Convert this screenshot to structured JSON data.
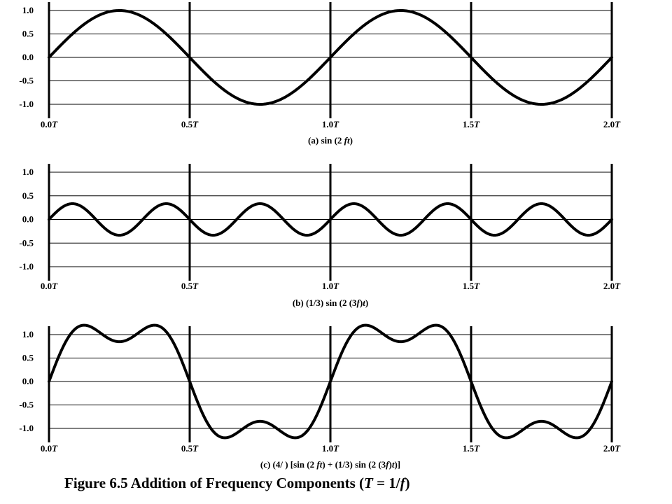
{
  "figure": {
    "title": "Figure 6.5  Addition of Frequency Components (T = 1/f)",
    "title_parts": [
      "Figure 6.5  Addition of Frequency Components (",
      "T",
      " = 1/",
      "f",
      ")"
    ]
  },
  "chart_data": [
    {
      "type": "line",
      "caption": "(a) sin (2  ft)",
      "caption_parts": [
        "(a) sin (2  ",
        "ft",
        ")"
      ],
      "x": [
        0,
        0.25,
        0.5,
        0.75,
        1.0,
        1.25,
        1.5,
        1.75,
        2.0
      ],
      "series": [
        {
          "values": [
            0,
            1,
            0,
            -1,
            0,
            1,
            0,
            -1,
            0
          ]
        }
      ],
      "formula": "sin(2*pi*f*t)",
      "xlim": [
        0,
        2
      ],
      "ylim": [
        -1,
        1
      ],
      "x_ticks": [
        "0.0T",
        "0.5T",
        "1.0T",
        "1.5T",
        "2.0T"
      ],
      "y_ticks": [
        "1.0",
        "0.5",
        "0.0",
        "-0.5",
        "-1.0"
      ],
      "grid": true,
      "color": "#000000"
    },
    {
      "type": "line",
      "caption": "(b) (1/3) sin (2  (3f)t)",
      "caption_parts": [
        "(b) (1/3) sin (2  (3",
        "f",
        ")",
        "t",
        ")"
      ],
      "x": [
        0,
        0.0833,
        0.1667,
        0.25,
        0.3333,
        0.4167,
        0.5,
        1.0,
        1.5,
        2.0
      ],
      "series": [
        {
          "values": [
            0,
            0.333,
            0,
            -0.333,
            0,
            0.333,
            0,
            0,
            0,
            0
          ]
        }
      ],
      "formula": "(1/3)*sin(2*pi*3f*t)",
      "xlim": [
        0,
        2
      ],
      "ylim": [
        -1,
        1
      ],
      "x_ticks": [
        "0.0T",
        "0.5T",
        "1.0T",
        "1.5T",
        "2.0T"
      ],
      "y_ticks": [
        "1.0",
        "0.5",
        "0.0",
        "-0.5",
        "-1.0"
      ],
      "grid": true,
      "color": "#000000"
    },
    {
      "type": "line",
      "caption": "(c)  (4/  ) [sin (2  ft) + (1/3) sin (2  (3f)t)]",
      "caption_parts": [
        "(c)  (4/  ) [sin (2  ",
        "ft",
        ") + (1/3) sin (2  (3",
        "f",
        ")",
        "t",
        ")]"
      ],
      "x": [
        0,
        0.1,
        0.25,
        0.4,
        0.5,
        0.6,
        0.75,
        0.9,
        1.0,
        1.1,
        1.25,
        1.4,
        1.5,
        1.6,
        1.75,
        1.9,
        2.0
      ],
      "series": [
        {
          "values": [
            0,
            1.2,
            0.85,
            1.2,
            0,
            -1.2,
            -0.85,
            -1.2,
            0,
            1.2,
            0.85,
            1.2,
            0,
            -1.2,
            -0.85,
            -1.2,
            0
          ]
        }
      ],
      "formula": "(4/pi)*[sin(2*pi*f*t) + (1/3)*sin(2*pi*3f*t)]",
      "xlim": [
        0,
        2
      ],
      "ylim": [
        -1,
        1
      ],
      "x_ticks": [
        "0.0T",
        "0.5T",
        "1.0T",
        "1.5T",
        "2.0T"
      ],
      "y_ticks": [
        "1.0",
        "0.5",
        "0.0",
        "-0.5",
        "-1.0"
      ],
      "grid": true,
      "color": "#000000"
    }
  ]
}
